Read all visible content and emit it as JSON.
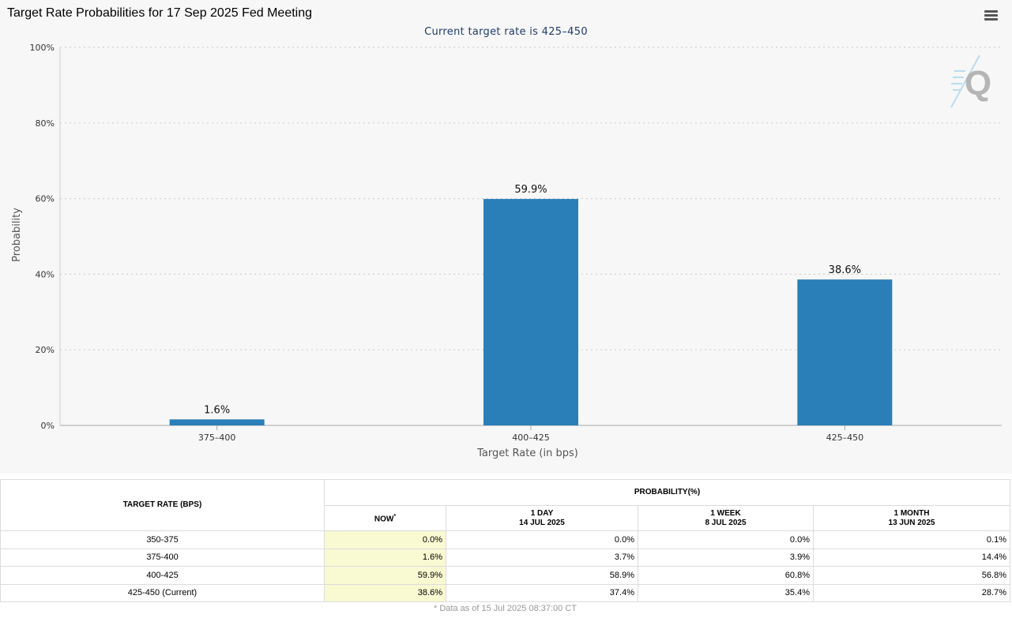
{
  "title": "Target Rate Probabilities for 17 Sep 2025 Fed Meeting",
  "chart_data": {
    "type": "bar",
    "title": "Target Rate Probabilities for 17 Sep 2025 Fed Meeting",
    "subtitle": "Current target rate is 425–450",
    "categories": [
      "375–400",
      "400–425",
      "425–450"
    ],
    "values": [
      1.6,
      59.9,
      38.6
    ],
    "data_labels": [
      "1.6%",
      "59.9%",
      "38.6%"
    ],
    "xlabel": "Target Rate (in bps)",
    "ylabel": "Probability",
    "ylim": [
      0,
      100
    ],
    "yticks": [
      0,
      20,
      40,
      60,
      80,
      100
    ],
    "ytick_labels": [
      "0%",
      "20%",
      "40%",
      "60%",
      "80%",
      "100%"
    ],
    "grid": true,
    "bar_color": "#2a7fb8"
  },
  "icons": {
    "menu": "hamburger-menu-icon",
    "logo": "q-logo-icon"
  },
  "table": {
    "rate_header": "TARGET RATE (BPS)",
    "prob_header": "PROBABILITY(%)",
    "columns": [
      {
        "line1": "NOW",
        "line2": ""
      },
      {
        "line1": "1 DAY",
        "line2": "14 JUL 2025"
      },
      {
        "line1": "1 WEEK",
        "line2": "8 JUL 2025"
      },
      {
        "line1": "1 MONTH",
        "line2": "13 JUN 2025"
      }
    ],
    "now_marker": "*",
    "rows": [
      {
        "rate": "350-375",
        "values": [
          "0.0%",
          "0.0%",
          "0.0%",
          "0.1%"
        ]
      },
      {
        "rate": "375-400",
        "values": [
          "1.6%",
          "3.7%",
          "3.9%",
          "14.4%"
        ]
      },
      {
        "rate": "400-425",
        "values": [
          "59.9%",
          "58.9%",
          "60.8%",
          "56.8%"
        ]
      },
      {
        "rate": "425-450 (Current)",
        "values": [
          "38.6%",
          "37.4%",
          "35.4%",
          "28.7%"
        ]
      }
    ],
    "footnote": "* Data as of 15 Jul 2025 08:37:00 CT"
  }
}
